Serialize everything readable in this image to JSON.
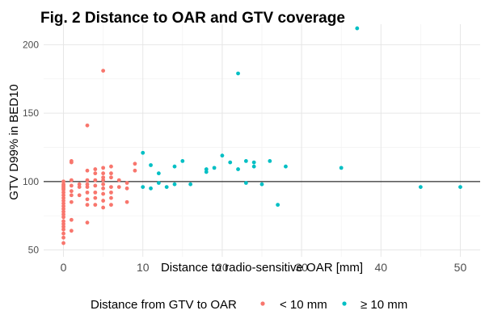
{
  "chart_data": {
    "type": "scatter",
    "title": "Fig. 2 Distance to OAR and GTV coverage",
    "xlabel": "Distance to radio-sensitive OAR [mm]",
    "ylabel": "GTV D99% in BED10",
    "xlim": [
      -2.5,
      52.5
    ],
    "ylim": [
      45,
      215
    ],
    "x_ticks": [
      0,
      10,
      20,
      30,
      40,
      50
    ],
    "y_ticks": [
      50,
      100,
      150,
      200
    ],
    "grid": true,
    "reference_line_y": 100,
    "legend": {
      "title": "Distance from GTV to OAR",
      "placement": "bottom",
      "entries": [
        {
          "label": "< 10 mm",
          "color": "#F8766D"
        },
        {
          "label": "≥ 10 mm",
          "color": "#00BFC4"
        }
      ]
    },
    "series": [
      {
        "name": "< 10 mm",
        "color": "#F8766D",
        "points": [
          [
            0,
            100
          ],
          [
            0,
            98
          ],
          [
            0,
            97
          ],
          [
            0,
            96
          ],
          [
            0,
            95
          ],
          [
            0,
            94
          ],
          [
            0,
            92
          ],
          [
            0,
            90
          ],
          [
            0,
            88
          ],
          [
            0,
            86
          ],
          [
            0,
            84
          ],
          [
            0,
            82
          ],
          [
            0,
            80
          ],
          [
            0,
            78
          ],
          [
            0,
            76
          ],
          [
            0,
            74
          ],
          [
            0,
            71
          ],
          [
            0,
            69
          ],
          [
            0,
            67
          ],
          [
            0,
            65
          ],
          [
            0,
            62
          ],
          [
            0,
            59
          ],
          [
            0,
            55
          ],
          [
            1,
            115
          ],
          [
            1,
            114
          ],
          [
            1,
            101
          ],
          [
            1,
            97
          ],
          [
            1,
            93
          ],
          [
            1,
            90
          ],
          [
            1,
            85
          ],
          [
            1,
            72
          ],
          [
            1,
            64
          ],
          [
            2,
            98
          ],
          [
            2,
            96
          ],
          [
            2,
            90
          ],
          [
            3,
            141
          ],
          [
            3,
            108
          ],
          [
            3,
            101
          ],
          [
            3,
            98
          ],
          [
            3,
            96
          ],
          [
            3,
            92
          ],
          [
            3,
            87
          ],
          [
            3,
            83
          ],
          [
            3,
            70
          ],
          [
            4,
            109
          ],
          [
            4,
            106
          ],
          [
            4,
            101
          ],
          [
            4,
            97
          ],
          [
            4,
            92
          ],
          [
            4,
            88
          ],
          [
            4,
            83
          ],
          [
            5,
            181
          ],
          [
            5,
            110
          ],
          [
            5,
            106
          ],
          [
            5,
            103
          ],
          [
            5,
            101
          ],
          [
            5,
            98
          ],
          [
            5,
            95
          ],
          [
            5,
            91
          ],
          [
            5,
            86
          ],
          [
            5,
            81
          ],
          [
            6,
            111
          ],
          [
            6,
            106
          ],
          [
            6,
            103
          ],
          [
            6,
            96
          ],
          [
            6,
            92
          ],
          [
            6,
            88
          ],
          [
            6,
            83
          ],
          [
            7,
            101
          ],
          [
            7,
            96
          ],
          [
            8,
            99
          ],
          [
            8,
            95
          ],
          [
            8,
            85
          ],
          [
            9,
            113
          ],
          [
            9,
            108
          ]
        ]
      },
      {
        "name": "≥ 10 mm",
        "color": "#00BFC4",
        "points": [
          [
            10,
            121
          ],
          [
            10,
            96
          ],
          [
            11,
            112
          ],
          [
            11,
            95
          ],
          [
            12,
            106
          ],
          [
            12,
            99
          ],
          [
            13,
            96
          ],
          [
            14,
            111
          ],
          [
            14,
            98
          ],
          [
            15,
            115
          ],
          [
            16,
            98
          ],
          [
            18,
            109
          ],
          [
            18,
            107
          ],
          [
            19,
            110
          ],
          [
            20,
            119
          ],
          [
            21,
            114
          ],
          [
            22,
            179
          ],
          [
            22,
            109
          ],
          [
            23,
            115
          ],
          [
            23,
            99
          ],
          [
            24,
            114
          ],
          [
            24,
            111
          ],
          [
            25,
            98
          ],
          [
            26,
            115
          ],
          [
            27,
            83
          ],
          [
            28,
            111
          ],
          [
            35,
            110
          ],
          [
            37,
            212
          ],
          [
            45,
            96
          ],
          [
            50,
            96
          ]
        ]
      }
    ]
  }
}
